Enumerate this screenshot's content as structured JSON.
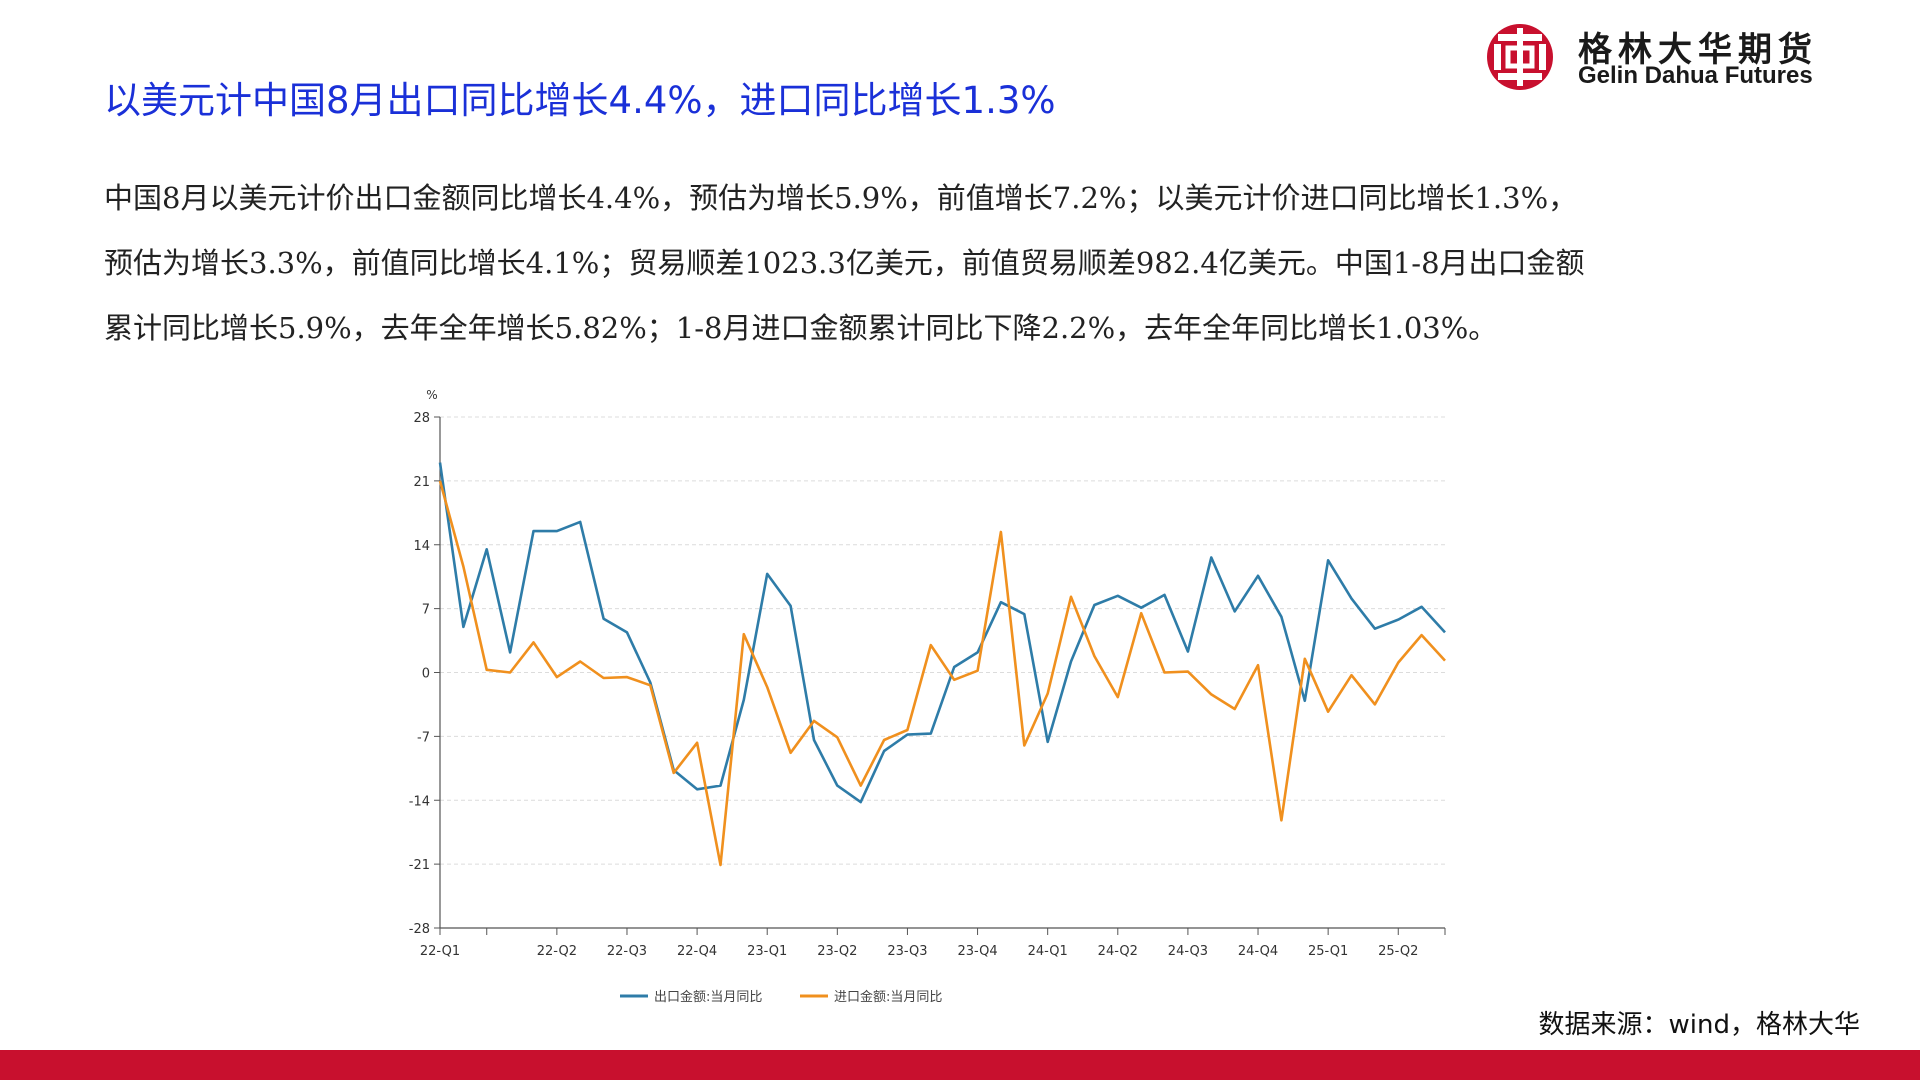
{
  "title": "以美元计中国8月出口同比增长4.4%，进口同比增长1.3%",
  "logo": {
    "cn": "格林大华期货",
    "en": "Gelin Dahua Futures"
  },
  "body": [
    "中国8月以美元计价出口金额同比增长4.4%，预估为增长5.9%，前值增长7.2%；以美元计价进口同比增长1.3%，",
    "预估为增长3.3%，前值同比增长4.1%；贸易顺差1023.3亿美元，前值贸易顺差982.4亿美元。中国1-8月出口金额",
    "累计同比增长5.9%，去年全年增长5.82%；1-8月进口金额累计同比下降2.2%，去年全年同比增长1.03%。"
  ],
  "source": "数据来源：wind，格林大华",
  "colors": {
    "title": "#1a30d8",
    "brand_red": "#c8102e",
    "export_line": "#2e7ca8",
    "import_line": "#f0901e"
  },
  "chart_data": {
    "type": "line",
    "ylabel": "%",
    "ylim": [
      -28,
      28
    ],
    "yticks": [
      28,
      21,
      14,
      7,
      0,
      -7,
      -14,
      -21,
      -28
    ],
    "grid": true,
    "legend_position": "bottom",
    "x_tick_labels": [
      {
        "index": 0,
        "label": "22-Q1"
      },
      {
        "index": 5,
        "label": "22-Q2"
      },
      {
        "index": 8,
        "label": "22-Q3"
      },
      {
        "index": 11,
        "label": "22-Q4"
      },
      {
        "index": 14,
        "label": "23-Q1"
      },
      {
        "index": 17,
        "label": "23-Q2"
      },
      {
        "index": 20,
        "label": "23-Q3"
      },
      {
        "index": 23,
        "label": "23-Q4"
      },
      {
        "index": 26,
        "label": "24-Q1"
      },
      {
        "index": 29,
        "label": "24-Q2"
      },
      {
        "index": 32,
        "label": "24-Q3"
      },
      {
        "index": 35,
        "label": "24-Q4"
      },
      {
        "index": 38,
        "label": "25-Q1"
      },
      {
        "index": 41,
        "label": "25-Q2"
      }
    ],
    "x_ticks_unlabeled": [
      2
    ],
    "series": [
      {
        "name": "出口金额:当月同比",
        "values": [
          23,
          5,
          13.5,
          2.2,
          15.5,
          15.5,
          16.5,
          5.9,
          4.4,
          -1.1,
          -10.7,
          -12.8,
          -12.4,
          -3,
          10.8,
          7.3,
          -7.4,
          -12.4,
          -14.2,
          -8.6,
          -6.8,
          -6.7,
          0.6,
          2.2,
          7.7,
          6.4,
          -7.6,
          1.2,
          7.4,
          8.4,
          7.1,
          8.5,
          2.3,
          12.6,
          6.7,
          10.6,
          6.1,
          -3.1,
          12.3,
          8.1,
          4.8,
          5.8,
          7.2,
          4.4
        ]
      },
      {
        "name": "进口金额:当月同比",
        "values": [
          21,
          11.6,
          0.3,
          0,
          3.3,
          -0.5,
          1.2,
          -0.6,
          -0.5,
          -1.4,
          -11,
          -7.7,
          -21.1,
          4.2,
          -1.6,
          -8.8,
          -5.3,
          -7.1,
          -12.4,
          -7.4,
          -6.3,
          3,
          -0.8,
          0.2,
          15.4,
          -8,
          -2.3,
          8.3,
          1.8,
          -2.7,
          6.5,
          0,
          0.1,
          -2.4,
          -4,
          0.8,
          -16.2,
          1.5,
          -4.3,
          -0.3,
          -3.5,
          1.1,
          4.1,
          1.3
        ]
      }
    ]
  }
}
